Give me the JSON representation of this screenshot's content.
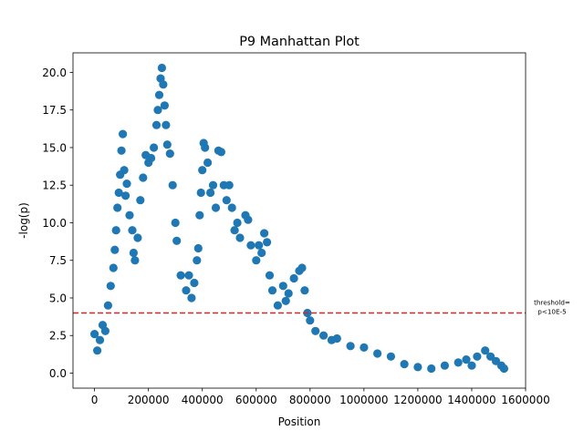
{
  "chart_data": {
    "type": "scatter",
    "title": "P9 Manhattan Plot",
    "xlabel": "Position",
    "ylabel": "-log(p)",
    "xlim": [
      -80000,
      1600000
    ],
    "ylim": [
      -1.0,
      21.3
    ],
    "xticks": [
      0,
      200000,
      400000,
      600000,
      800000,
      1000000,
      1200000,
      1400000,
      1600000
    ],
    "xtick_labels": [
      "0",
      "200000",
      "400000",
      "600000",
      "800000",
      "1000000",
      "1200000",
      "1400000",
      "1600000"
    ],
    "yticks": [
      0.0,
      2.5,
      5.0,
      7.5,
      10.0,
      12.5,
      15.0,
      17.5,
      20.0
    ],
    "ytick_labels": [
      "0.0",
      "2.5",
      "5.0",
      "7.5",
      "10.0",
      "12.5",
      "15.0",
      "17.5",
      "20.0"
    ],
    "marker_color": "#1f77b4",
    "threshold": {
      "y": 4.0,
      "color": "#d62728",
      "style": "dashed",
      "label_lines": [
        "threshold=",
        "p<10E-5"
      ]
    },
    "grid": false,
    "series": [
      {
        "name": "",
        "points": [
          [
            0,
            2.6
          ],
          [
            10000,
            1.5
          ],
          [
            20000,
            2.2
          ],
          [
            30000,
            3.2
          ],
          [
            40000,
            2.8
          ],
          [
            50000,
            4.5
          ],
          [
            60000,
            5.8
          ],
          [
            70000,
            7.0
          ],
          [
            75000,
            8.2
          ],
          [
            80000,
            9.5
          ],
          [
            85000,
            11.0
          ],
          [
            90000,
            12.0
          ],
          [
            95000,
            13.2
          ],
          [
            100000,
            14.8
          ],
          [
            105000,
            15.9
          ],
          [
            110000,
            13.5
          ],
          [
            115000,
            11.8
          ],
          [
            120000,
            12.6
          ],
          [
            130000,
            10.5
          ],
          [
            140000,
            9.5
          ],
          [
            145000,
            8.0
          ],
          [
            150000,
            7.5
          ],
          [
            160000,
            9.0
          ],
          [
            170000,
            11.5
          ],
          [
            180000,
            13.0
          ],
          [
            190000,
            14.5
          ],
          [
            200000,
            14.0
          ],
          [
            210000,
            14.3
          ],
          [
            220000,
            15.0
          ],
          [
            230000,
            16.5
          ],
          [
            235000,
            17.5
          ],
          [
            240000,
            18.5
          ],
          [
            245000,
            19.6
          ],
          [
            250000,
            20.3
          ],
          [
            255000,
            19.2
          ],
          [
            260000,
            17.8
          ],
          [
            265000,
            16.5
          ],
          [
            270000,
            15.2
          ],
          [
            280000,
            14.6
          ],
          [
            290000,
            12.5
          ],
          [
            300000,
            10.0
          ],
          [
            305000,
            8.8
          ],
          [
            320000,
            6.5
          ],
          [
            340000,
            5.5
          ],
          [
            350000,
            6.5
          ],
          [
            360000,
            5.0
          ],
          [
            370000,
            6.0
          ],
          [
            380000,
            7.5
          ],
          [
            385000,
            8.3
          ],
          [
            390000,
            10.5
          ],
          [
            395000,
            12.0
          ],
          [
            400000,
            13.5
          ],
          [
            405000,
            15.3
          ],
          [
            410000,
            15.0
          ],
          [
            420000,
            14.0
          ],
          [
            430000,
            12.0
          ],
          [
            440000,
            12.5
          ],
          [
            450000,
            11.0
          ],
          [
            460000,
            14.8
          ],
          [
            470000,
            14.7
          ],
          [
            480000,
            12.5
          ],
          [
            490000,
            11.5
          ],
          [
            500000,
            12.5
          ],
          [
            510000,
            11.0
          ],
          [
            520000,
            9.5
          ],
          [
            530000,
            10.0
          ],
          [
            540000,
            9.0
          ],
          [
            560000,
            10.5
          ],
          [
            570000,
            10.2
          ],
          [
            580000,
            8.5
          ],
          [
            600000,
            7.5
          ],
          [
            610000,
            8.5
          ],
          [
            620000,
            8.0
          ],
          [
            630000,
            9.3
          ],
          [
            640000,
            8.7
          ],
          [
            650000,
            6.5
          ],
          [
            660000,
            5.5
          ],
          [
            680000,
            4.5
          ],
          [
            700000,
            5.8
          ],
          [
            710000,
            4.8
          ],
          [
            720000,
            5.3
          ],
          [
            740000,
            6.3
          ],
          [
            760000,
            6.8
          ],
          [
            770000,
            7.0
          ],
          [
            780000,
            5.5
          ],
          [
            790000,
            4.0
          ],
          [
            800000,
            3.5
          ],
          [
            820000,
            2.8
          ],
          [
            850000,
            2.5
          ],
          [
            880000,
            2.2
          ],
          [
            900000,
            2.3
          ],
          [
            950000,
            1.8
          ],
          [
            1000000,
            1.7
          ],
          [
            1050000,
            1.3
          ],
          [
            1100000,
            1.1
          ],
          [
            1150000,
            0.6
          ],
          [
            1200000,
            0.4
          ],
          [
            1250000,
            0.3
          ],
          [
            1300000,
            0.5
          ],
          [
            1350000,
            0.7
          ],
          [
            1380000,
            0.9
          ],
          [
            1400000,
            0.5
          ],
          [
            1420000,
            1.1
          ],
          [
            1450000,
            1.5
          ],
          [
            1470000,
            1.1
          ],
          [
            1490000,
            0.8
          ],
          [
            1510000,
            0.5
          ],
          [
            1520000,
            0.3
          ]
        ]
      }
    ]
  }
}
